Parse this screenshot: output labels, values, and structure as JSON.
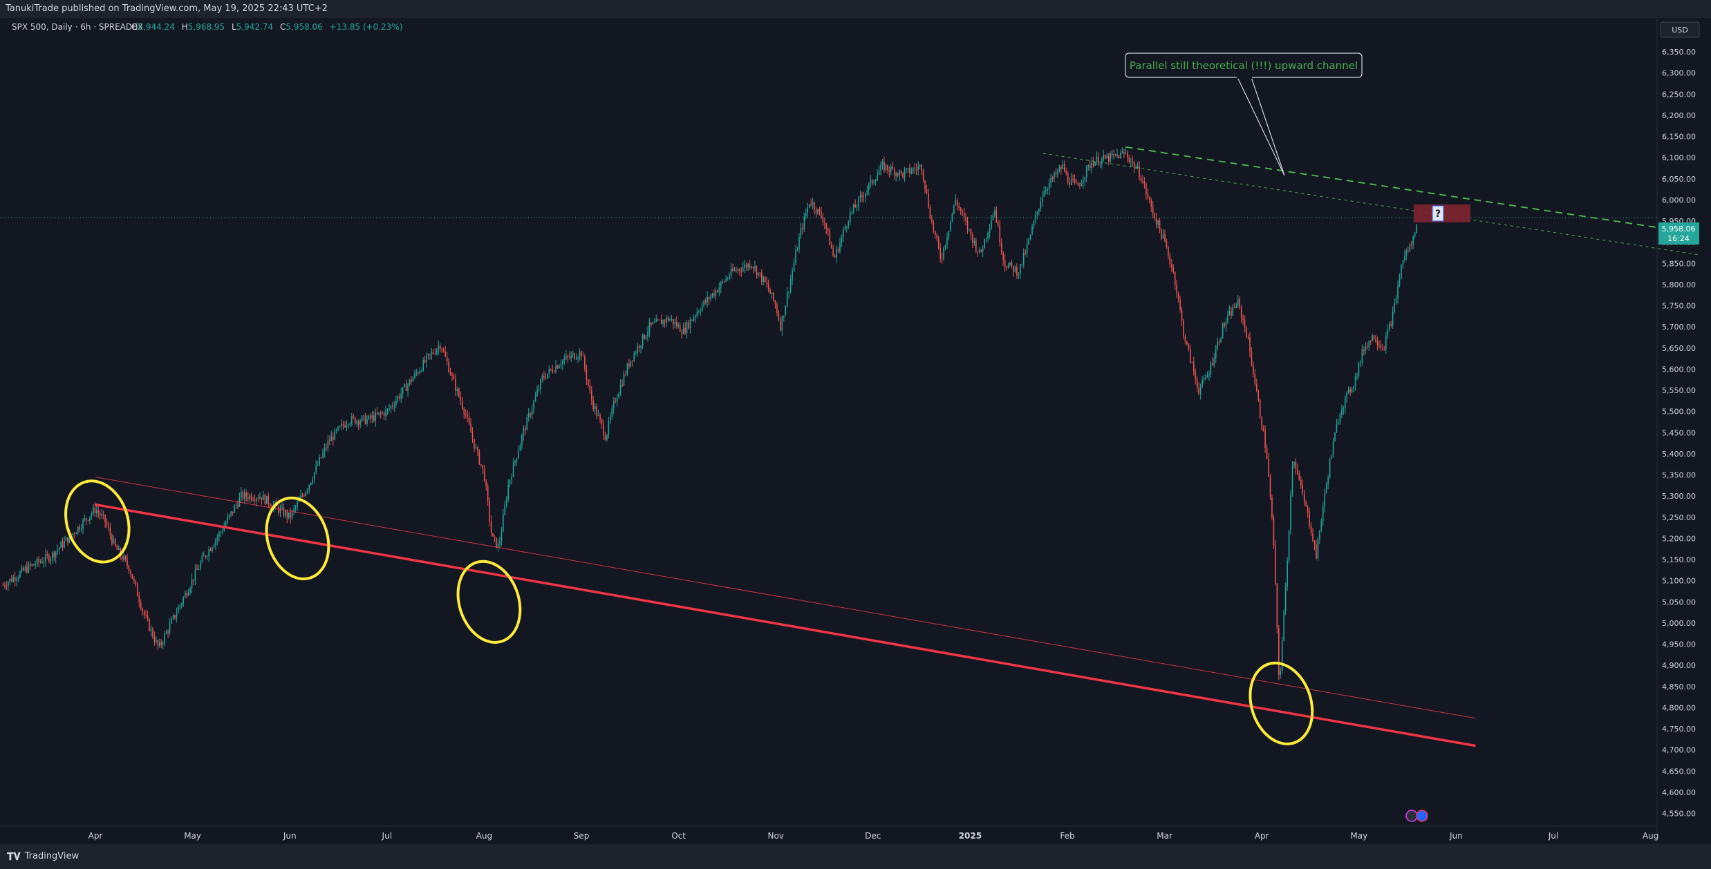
{
  "header": {
    "published_by": "TanukiTrade published on TradingView.com, May 19, 2025 22:43 UTC+2"
  },
  "legend": {
    "symbol": "SPX 500, Daily · 6h · SPREADEX",
    "o_label": "O",
    "o_value": "5,944.24",
    "h_label": "H",
    "h_value": "5,968.95",
    "l_label": "L",
    "l_value": "5,942.74",
    "c_label": "C",
    "c_value": "5,958.06",
    "change": "+13.85 (+0.23%)"
  },
  "currency_button": "USD",
  "price_tag": {
    "value": "5,958.06",
    "countdown": "16:24"
  },
  "annotation": {
    "text": "Parallel still theoretical (!!!) upward channel",
    "question": "?"
  },
  "footer": {
    "brand": "TradingView"
  },
  "colors": {
    "bg": "#131722",
    "panel": "#1e222d",
    "up": "#26a69a",
    "down": "#ef5350",
    "trendline": "#f23645",
    "circle": "#ffeb3b",
    "channel": "#4caf50",
    "text": "#d1d4dc"
  },
  "chart_data": {
    "type": "candlestick",
    "title": "SPX 500, Daily · 6h · SPREADEX",
    "ylim": [
      4520,
      6430
    ],
    "y_ticks": [
      "6,350.00",
      "6,300.00",
      "6,250.00",
      "6,200.00",
      "6,150.00",
      "6,100.00",
      "6,050.00",
      "6,000.00",
      "5,950.00",
      "5,900.00",
      "5,850.00",
      "5,800.00",
      "5,750.00",
      "5,700.00",
      "5,650.00",
      "5,600.00",
      "5,550.00",
      "5,500.00",
      "5,450.00",
      "5,400.00",
      "5,350.00",
      "5,300.00",
      "5,250.00",
      "5,200.00",
      "5,150.00",
      "5,100.00",
      "5,050.00",
      "5,000.00",
      "4,950.00",
      "4,900.00",
      "4,850.00",
      "4,800.00",
      "4,750.00",
      "4,700.00",
      "4,650.00",
      "4,600.00",
      "4,550.00"
    ],
    "x_ticks": [
      "Apr",
      "May",
      "Jun",
      "Jul",
      "Aug",
      "Sep",
      "Oct",
      "Nov",
      "Dec",
      "2025",
      "Feb",
      "Mar",
      "Apr",
      "May",
      "Jun",
      "Jul",
      "Aug"
    ],
    "x_tick_index": [
      0,
      1,
      2,
      3,
      4,
      5,
      6,
      7,
      8,
      9,
      10,
      11,
      12,
      13,
      14,
      15,
      16
    ],
    "price_path": [
      [
        -0.95,
        5090
      ],
      [
        -0.7,
        5130
      ],
      [
        -0.45,
        5160
      ],
      [
        -0.2,
        5220
      ],
      [
        0,
        5270
      ],
      [
        0.1,
        5240
      ],
      [
        0.2,
        5180
      ],
      [
        0.35,
        5130
      ],
      [
        0.5,
        5020
      ],
      [
        0.65,
        4940
      ],
      [
        0.8,
        5010
      ],
      [
        0.95,
        5080
      ],
      [
        1.1,
        5150
      ],
      [
        1.3,
        5220
      ],
      [
        1.5,
        5300
      ],
      [
        1.7,
        5300
      ],
      [
        2.0,
        5250
      ],
      [
        2.2,
        5330
      ],
      [
        2.4,
        5430
      ],
      [
        2.6,
        5480
      ],
      [
        2.8,
        5480
      ],
      [
        3.0,
        5500
      ],
      [
        3.2,
        5560
      ],
      [
        3.4,
        5620
      ],
      [
        3.55,
        5660
      ],
      [
        3.7,
        5560
      ],
      [
        3.8,
        5500
      ],
      [
        3.9,
        5420
      ],
      [
        4.0,
        5350
      ],
      [
        4.08,
        5200
      ],
      [
        4.15,
        5180
      ],
      [
        4.25,
        5330
      ],
      [
        4.4,
        5450
      ],
      [
        4.6,
        5580
      ],
      [
        4.8,
        5620
      ],
      [
        5.0,
        5640
      ],
      [
        5.1,
        5530
      ],
      [
        5.25,
        5440
      ],
      [
        5.35,
        5530
      ],
      [
        5.5,
        5620
      ],
      [
        5.7,
        5700
      ],
      [
        5.9,
        5720
      ],
      [
        6.05,
        5690
      ],
      [
        6.2,
        5740
      ],
      [
        6.4,
        5790
      ],
      [
        6.55,
        5830
      ],
      [
        6.75,
        5850
      ],
      [
        6.9,
        5800
      ],
      [
        7.0,
        5750
      ],
      [
        7.05,
        5700
      ],
      [
        7.15,
        5810
      ],
      [
        7.25,
        5920
      ],
      [
        7.35,
        6000
      ],
      [
        7.5,
        5950
      ],
      [
        7.6,
        5860
      ],
      [
        7.75,
        5960
      ],
      [
        7.95,
        6030
      ],
      [
        8.1,
        6080
      ],
      [
        8.3,
        6060
      ],
      [
        8.5,
        6080
      ],
      [
        8.6,
        5950
      ],
      [
        8.7,
        5860
      ],
      [
        8.85,
        6000
      ],
      [
        9.0,
        5920
      ],
      [
        9.1,
        5870
      ],
      [
        9.25,
        5980
      ],
      [
        9.35,
        5850
      ],
      [
        9.5,
        5830
      ],
      [
        9.6,
        5900
      ],
      [
        9.75,
        6020
      ],
      [
        9.95,
        6080
      ],
      [
        10.0,
        6050
      ],
      [
        10.1,
        6030
      ],
      [
        10.25,
        6090
      ],
      [
        10.45,
        6100
      ],
      [
        10.6,
        6110
      ],
      [
        10.75,
        6060
      ],
      [
        10.85,
        5990
      ],
      [
        11.0,
        5900
      ],
      [
        11.1,
        5820
      ],
      [
        11.2,
        5680
      ],
      [
        11.35,
        5550
      ],
      [
        11.45,
        5590
      ],
      [
        11.6,
        5700
      ],
      [
        11.75,
        5760
      ],
      [
        11.85,
        5680
      ],
      [
        11.95,
        5540
      ],
      [
        12.05,
        5400
      ],
      [
        12.12,
        5200
      ],
      [
        12.18,
        4850
      ],
      [
        12.25,
        5100
      ],
      [
        12.32,
        5400
      ],
      [
        12.4,
        5320
      ],
      [
        12.5,
        5230
      ],
      [
        12.56,
        5160
      ],
      [
        12.62,
        5260
      ],
      [
        12.7,
        5380
      ],
      [
        12.8,
        5500
      ],
      [
        12.95,
        5570
      ],
      [
        13.05,
        5650
      ],
      [
        13.15,
        5680
      ],
      [
        13.25,
        5650
      ],
      [
        13.35,
        5730
      ],
      [
        13.45,
        5860
      ],
      [
        13.55,
        5900
      ],
      [
        13.6,
        5960
      ]
    ],
    "primary_trendline": {
      "from": [
        0,
        5280
      ],
      "to": [
        14.2,
        4710
      ]
    },
    "secondary_trendline": {
      "from": [
        0,
        5345
      ],
      "to": [
        14.2,
        4775
      ]
    },
    "channel_top": {
      "from": [
        10.6,
        6125
      ],
      "to": [
        16.5,
        5920
      ]
    },
    "channel_bottom": {
      "from": [
        9.75,
        6110
      ],
      "to": [
        16.5,
        5870
      ]
    },
    "last_price": 5958.06
  }
}
